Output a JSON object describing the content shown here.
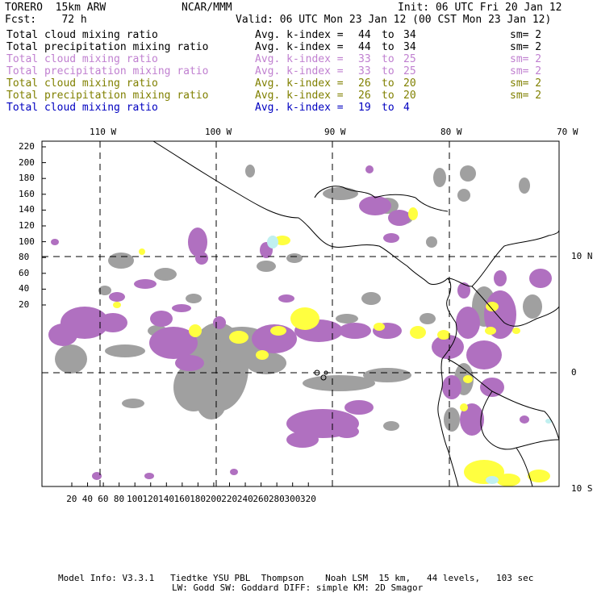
{
  "header": {
    "model": "TORERO  15km ARW",
    "center": "NCAR/MMM",
    "init": "Init: 06 UTC Fri 20 Jan 12",
    "fcst": "Fcst:    72 h",
    "valid": "Valid: 06 UTC Mon 23 Jan 12 (00 CST Mon 23 Jan 12)"
  },
  "legend": [
    {
      "field": "Total cloud mixing ratio",
      "index": "Avg. k-index =",
      "hi": "44",
      "to": "to",
      "lo": "34",
      "sm": "sm= 2",
      "color": "#000000"
    },
    {
      "field": "Total precipitation mixing ratio",
      "index": "Avg. k-index =",
      "hi": "44",
      "to": "to",
      "lo": "34",
      "sm": "sm= 2",
      "color": "#000000"
    },
    {
      "field": "Total cloud mixing ratio",
      "index": "Avg. k-index =",
      "hi": "33",
      "to": "to",
      "lo": "25",
      "sm": "sm= 2",
      "color": "#c080d0"
    },
    {
      "field": "Total precipitation mixing ratio",
      "index": "Avg. k-index =",
      "hi": "33",
      "to": "to",
      "lo": "25",
      "sm": "sm= 2",
      "color": "#c080d0"
    },
    {
      "field": "Total cloud mixing ratio",
      "index": "Avg. k-index =",
      "hi": "26",
      "to": "to",
      "lo": "20",
      "sm": "sm= 2",
      "color": "#808000"
    },
    {
      "field": "Total precipitation mixing ratio",
      "index": "Avg. k-index =",
      "hi": "26",
      "to": "to",
      "lo": "20",
      "sm": "sm= 2",
      "color": "#808000"
    },
    {
      "field": "Total cloud mixing ratio",
      "index": "Avg. k-index =",
      "hi": "19",
      "to": "to",
      "lo": "4",
      "sm": "",
      "color": "#0000c0"
    }
  ],
  "map": {
    "lon_labels": [
      "110 W",
      "100 W",
      "90 W",
      "80 W",
      "70 W"
    ],
    "lat_labels": [
      "10 N",
      "0",
      "10 S"
    ],
    "y_ticks": [
      "220",
      "200",
      "180",
      "160",
      "140",
      "120",
      "100",
      "80",
      "60",
      "40",
      "20"
    ],
    "x_ticks": [
      "20",
      "40",
      "60",
      "80",
      "100",
      "120",
      "140",
      "160",
      "180",
      "200",
      "220",
      "240",
      "260",
      "280",
      "300",
      "320"
    ],
    "colors": {
      "gray": "#a0a0a0",
      "purple": "#b070c0",
      "yellow": "#ffff40",
      "cyan": "#c0f0f0"
    }
  },
  "footer": {
    "line1": "Model Info: V3.3.1   Tiedtke YSU PBL  Thompson    Noah LSM  15 km,   44 levels,   103 sec",
    "line2": "LW: Godd SW: Goddard DIFF: simple KM: 2D Smagor"
  }
}
